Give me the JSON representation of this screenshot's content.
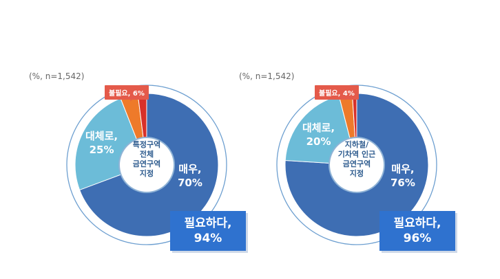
{
  "chart_data": [
    {
      "type": "pie",
      "center_label_lines": [
        "특정구역",
        "전체",
        "금연구역",
        "지정"
      ],
      "note": "(%, n=1,542)",
      "slices": [
        {
          "label": "매우,",
          "value": 70,
          "value_text": "70%",
          "color": "#3e6eb3"
        },
        {
          "label": "대체로,",
          "value": 25,
          "value_text": "25%",
          "color": "#6cbcd8"
        },
        {
          "label": "불필요, 6%",
          "value": 4,
          "color": "#ee7a2a"
        },
        {
          "label": "",
          "value": 2,
          "color": "#d8312a"
        }
      ],
      "total_lines": [
        "필요하다,",
        "94%"
      ]
    },
    {
      "type": "pie",
      "center_label_lines": [
        "지하철/",
        "기차역 인근",
        "금연구역",
        "지정"
      ],
      "note": "(%, n=1,542)",
      "slices": [
        {
          "label": "매우,",
          "value": 76,
          "value_text": "76%",
          "color": "#3e6eb3"
        },
        {
          "label": "대체로,",
          "value": 20,
          "value_text": "20%",
          "color": "#6cbcd8"
        },
        {
          "label": "불필요, 4%",
          "value": 3,
          "color": "#ee7a2a"
        },
        {
          "label": "",
          "value": 1,
          "color": "#d8312a"
        }
      ],
      "total_lines": [
        "필요하다,",
        "96%"
      ]
    }
  ]
}
